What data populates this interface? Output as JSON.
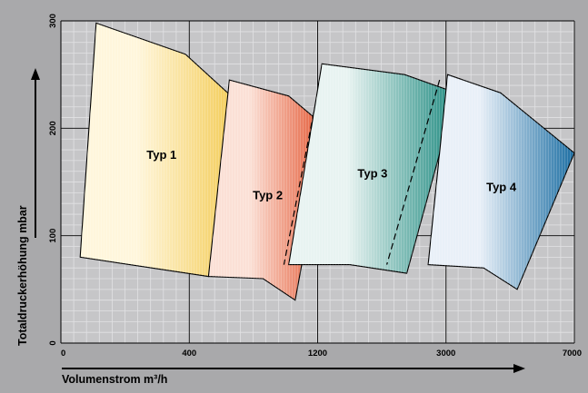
{
  "chart_data": {
    "type": "area",
    "title": "",
    "xlabel": "Volumenstrom  m³/h",
    "ylabel": "Totaldruckerhöhung  mbar",
    "x_scale": "non-uniform",
    "x_ticks": [
      "0",
      "400",
      "1200",
      "3000",
      "7000"
    ],
    "y_ticks": [
      "0",
      "100",
      "200",
      "300"
    ],
    "ylim": [
      0,
      300
    ],
    "grid": true,
    "series": [
      {
        "name": "Typ 1",
        "color": "#f2c84a",
        "colorLight": "#fff6dc",
        "outline": [
          [
            110,
            298
          ],
          [
            388,
            269
          ],
          [
            735,
            220
          ],
          [
            520,
            62
          ],
          [
            60,
            80
          ]
        ],
        "dashed": [
          [
            735,
            220
          ],
          [
            555,
            72
          ]
        ]
      },
      {
        "name": "Typ 2",
        "color": "#e2502a",
        "colorLight": "#fbe0d6",
        "outline": [
          [
            650,
            245
          ],
          [
            1020,
            230
          ],
          [
            1330,
            200
          ],
          [
            1060,
            40
          ],
          [
            860,
            60
          ],
          [
            520,
            62
          ]
        ],
        "dashed": [
          [
            1200,
            233
          ],
          [
            990,
            73
          ]
        ]
      },
      {
        "name": "Typ 3",
        "color": "#1f8a80",
        "colorLight": "#e8f3f1",
        "outline": [
          [
            1260,
            260
          ],
          [
            2420,
            250
          ],
          [
            3320,
            233
          ],
          [
            2450,
            65
          ],
          [
            1650,
            73
          ],
          [
            1020,
            73
          ]
        ],
        "dashed": [
          [
            2910,
            245
          ],
          [
            2170,
            73
          ]
        ]
      },
      {
        "name": "Typ 4",
        "color": "#1c6ea3",
        "colorLight": "#e9f0f8",
        "outline": [
          [
            3050,
            250
          ],
          [
            4700,
            233
          ],
          [
            7000,
            177
          ],
          [
            5220,
            50
          ],
          [
            4170,
            70
          ],
          [
            2750,
            73
          ]
        ],
        "dashed": []
      }
    ]
  }
}
